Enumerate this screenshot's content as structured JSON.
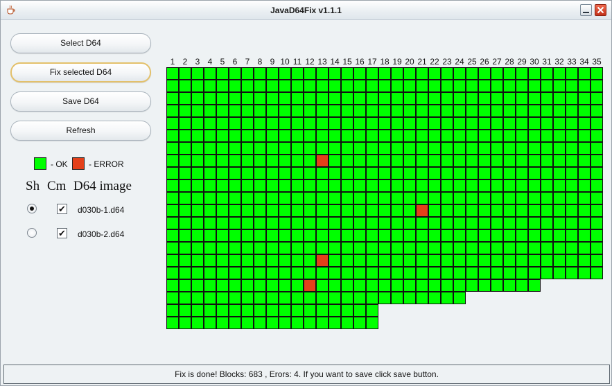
{
  "window": {
    "title": "JavaD64Fix v1.1.1"
  },
  "buttons": {
    "select": "Select D64",
    "fix": "Fix selected D64",
    "save": "Save D64",
    "refresh": "Refresh"
  },
  "legend": {
    "ok_label": "- OK",
    "error_label": "- ERROR",
    "ok_color": "#00ff00",
    "error_color": "#e3401a"
  },
  "list": {
    "headers": {
      "sh": "Sh",
      "cm": "Cm",
      "image": "D64 image"
    },
    "items": [
      {
        "name": "d030b-1.d64",
        "shown": true,
        "checked": true
      },
      {
        "name": "d030b-2.d64",
        "shown": false,
        "checked": true
      }
    ]
  },
  "grid": {
    "track_labels": [
      "1",
      "2",
      "3",
      "4",
      "5",
      "6",
      "7",
      "8",
      "9",
      "10",
      "11",
      "12",
      "13",
      "14",
      "15",
      "16",
      "17",
      "18",
      "19",
      "20",
      "21",
      "22",
      "23",
      "24",
      "25",
      "26",
      "27",
      "28",
      "29",
      "30",
      "31",
      "32",
      "33",
      "34",
      "35"
    ],
    "sectors_per_track": [
      21,
      21,
      21,
      21,
      21,
      21,
      21,
      21,
      21,
      21,
      21,
      21,
      21,
      21,
      21,
      21,
      21,
      19,
      19,
      19,
      19,
      19,
      19,
      19,
      18,
      18,
      18,
      18,
      18,
      18,
      17,
      17,
      17,
      17,
      17
    ],
    "errors": [
      {
        "track": 13,
        "sector": 7
      },
      {
        "track": 21,
        "sector": 11
      },
      {
        "track": 13,
        "sector": 15
      },
      {
        "track": 12,
        "sector": 17
      }
    ]
  },
  "status": {
    "message": "Fix is done! Blocks: 683 , Erors: 4. If you want to save click save button."
  }
}
